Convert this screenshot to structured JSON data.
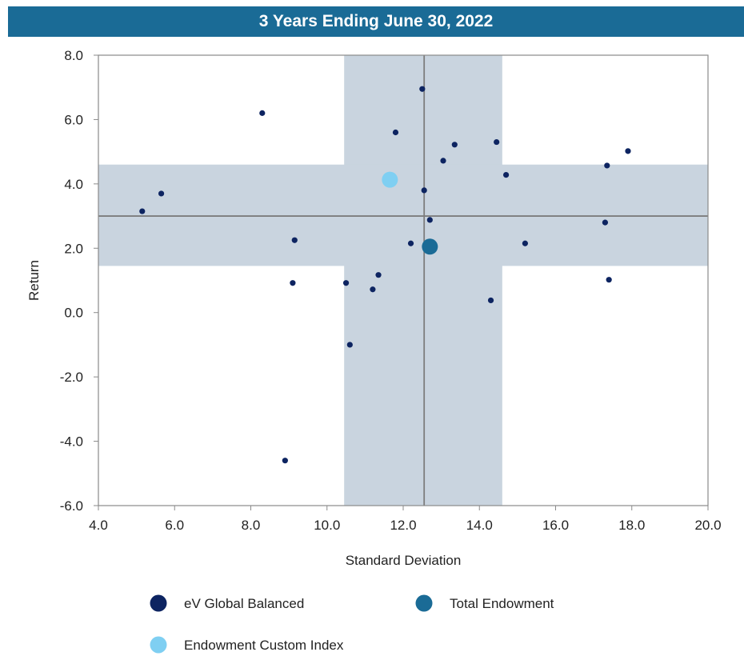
{
  "chart_data": {
    "type": "scatter",
    "title": "3 Years Ending June 30, 2022",
    "xlabel": "Standard Deviation",
    "ylabel": "Return",
    "xlim": [
      4.0,
      20.0
    ],
    "ylim": [
      -6.0,
      8.0
    ],
    "x_ticks": [
      "4.0",
      "6.0",
      "8.0",
      "10.0",
      "12.0",
      "14.0",
      "16.0",
      "18.0",
      "20.0"
    ],
    "y_ticks": [
      "8.0",
      "6.0",
      "4.0",
      "2.0",
      "0.0",
      "-2.0",
      "-4.0",
      "-6.0"
    ],
    "grid": false,
    "legend_position": "bottom",
    "median_lines": {
      "x": 12.55,
      "y": 3.0
    },
    "bands": {
      "x_range": [
        10.45,
        14.6
      ],
      "y_range": [
        1.45,
        4.6
      ],
      "color": "#c9d4df"
    },
    "series": [
      {
        "name": "eV Global Balanced",
        "color": "#0d2461",
        "points": [
          {
            "x": 5.15,
            "y": 3.15
          },
          {
            "x": 5.65,
            "y": 3.7
          },
          {
            "x": 8.3,
            "y": 6.2
          },
          {
            "x": 8.9,
            "y": -4.6
          },
          {
            "x": 9.1,
            "y": 0.92
          },
          {
            "x": 9.15,
            "y": 2.25
          },
          {
            "x": 10.5,
            "y": 0.92
          },
          {
            "x": 10.6,
            "y": -1.0
          },
          {
            "x": 11.2,
            "y": 0.72
          },
          {
            "x": 11.35,
            "y": 1.17
          },
          {
            "x": 11.8,
            "y": 5.6
          },
          {
            "x": 12.2,
            "y": 2.15
          },
          {
            "x": 12.5,
            "y": 6.95
          },
          {
            "x": 12.55,
            "y": 3.8
          },
          {
            "x": 12.7,
            "y": 2.88
          },
          {
            "x": 13.05,
            "y": 4.72
          },
          {
            "x": 13.35,
            "y": 5.22
          },
          {
            "x": 14.3,
            "y": 0.38
          },
          {
            "x": 14.45,
            "y": 5.3
          },
          {
            "x": 14.7,
            "y": 4.28
          },
          {
            "x": 15.2,
            "y": 2.15
          },
          {
            "x": 17.3,
            "y": 2.8
          },
          {
            "x": 17.35,
            "y": 4.57
          },
          {
            "x": 17.4,
            "y": 1.02
          },
          {
            "x": 17.9,
            "y": 5.02
          }
        ]
      },
      {
        "name": "Total Endowment",
        "color": "#1a6b96",
        "points": [
          {
            "x": 12.7,
            "y": 2.05
          }
        ]
      },
      {
        "name": "Endowment Custom Index",
        "color": "#7fcff2",
        "points": [
          {
            "x": 11.65,
            "y": 4.13
          }
        ]
      }
    ]
  }
}
